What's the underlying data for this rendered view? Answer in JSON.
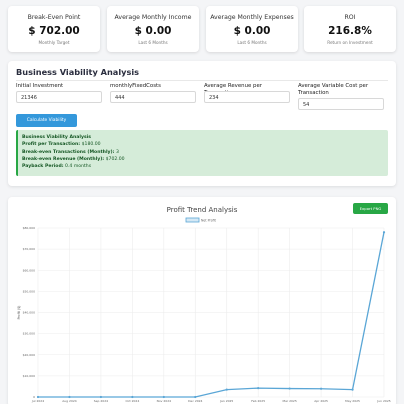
{
  "stats": [
    {
      "title": "Break-Even Point",
      "value": "$ 702.00",
      "sub": "Monthly Target"
    },
    {
      "title": "Average Monthly Income",
      "value": "$ 0.00",
      "sub": "Last 6 Months"
    },
    {
      "title": "Average Monthly Expenses",
      "value": "$ 0.00",
      "sub": "Last 6 Months"
    },
    {
      "title": "ROI",
      "value": "216.8%",
      "sub": "Return on Investment"
    }
  ],
  "viability": {
    "title": "Business Viability Analysis",
    "fields": [
      {
        "label": "Initial Investment",
        "value": "21346"
      },
      {
        "label": "monthlyFixedCosts",
        "value": "444"
      },
      {
        "label": "Average Revenue per Transaction",
        "value": "234"
      },
      {
        "label": "Average Variable Cost per Transaction",
        "value": "54"
      }
    ],
    "button": "Calculate Viability",
    "result": {
      "heading": "Business Viability Analysis",
      "lines": [
        {
          "label": "Profit per Transaction:",
          "value": "$180.00"
        },
        {
          "label": "Break-even Transactions (Monthly):",
          "value": "3"
        },
        {
          "label": "Break-even Revenue (Monthly):",
          "value": "$702.00"
        },
        {
          "label": "Payback Period:",
          "value": "0.4 months"
        }
      ]
    }
  },
  "chart_panel": {
    "export_label": "Export PNG"
  },
  "chart_data": {
    "type": "line",
    "title": "Profit Trend Analysis",
    "ylabel": "Profit ($)",
    "xlabel": "",
    "legend": "top",
    "grid": true,
    "ylim": [
      0,
      80000
    ],
    "yticks": [
      "0",
      "$10,000",
      "$20,000",
      "$30,000",
      "$40,000",
      "$50,000",
      "$60,000",
      "$70,000",
      "$80,000"
    ],
    "categories": [
      "Jul 2024",
      "Aug 2024",
      "Sep 2024",
      "Oct 2024",
      "Nov 2024",
      "Dec 2024",
      "Jan 2025",
      "Feb 2025",
      "Mar 2025",
      "Apr 2025",
      "May 2025",
      "Jun 2025"
    ],
    "series": [
      {
        "name": "Net Profit",
        "color": "#5aa6d6",
        "values": [
          0,
          0,
          0,
          0,
          0,
          0,
          3500,
          4200,
          4000,
          3900,
          3500,
          78000
        ]
      }
    ]
  }
}
